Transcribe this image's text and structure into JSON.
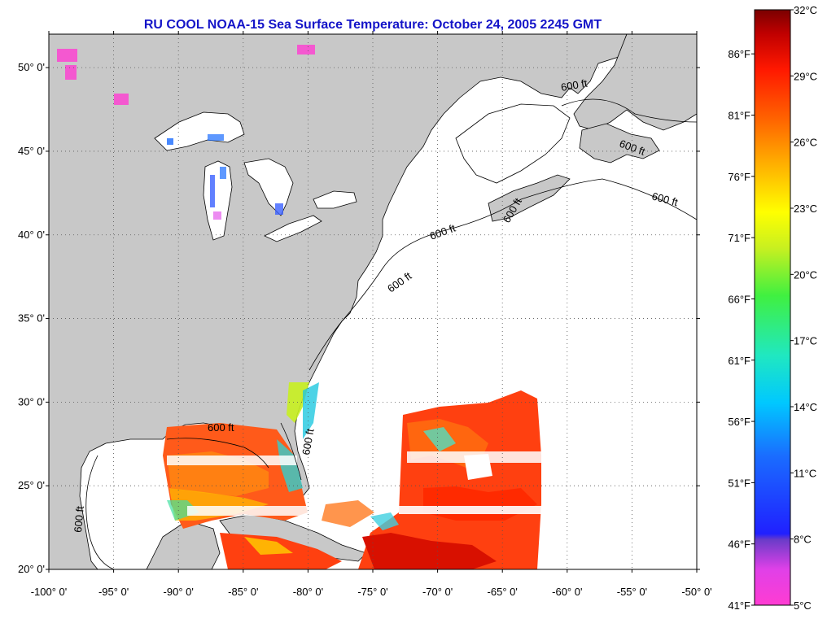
{
  "title": "RU COOL  NOAA-15  Sea Surface Temperature:  October 24, 2005 2245 GMT",
  "map": {
    "lon_range": [
      -100,
      -50
    ],
    "lat_range": [
      20,
      52
    ],
    "lat_labels": [
      "20° 0'",
      "25° 0'",
      "30° 0'",
      "35° 0'",
      "40° 0'",
      "45° 0'",
      "50° 0'"
    ],
    "lat_values": [
      20,
      25,
      30,
      35,
      40,
      45,
      50
    ],
    "lon_labels": [
      "-100° 0'",
      "-95° 0'",
      "-90° 0'",
      "-85° 0'",
      "-80° 0'",
      "-75° 0'",
      "-70° 0'",
      "-65° 0'",
      "-60° 0'",
      "-55° 0'",
      "-50° 0'"
    ],
    "lon_values": [
      -100,
      -95,
      -90,
      -85,
      -80,
      -75,
      -70,
      -65,
      -60,
      -55,
      -50
    ],
    "contour_label": "600 ft",
    "colors": {
      "land": "#c8c8c8",
      "ocean": "#ffffff",
      "grid": "#555555"
    }
  },
  "colorbar": {
    "celsius_labels": [
      "32°C",
      "29°C",
      "26°C",
      "23°C",
      "20°C",
      "17°C",
      "14°C",
      "11°C",
      "8°C",
      "5°C"
    ],
    "celsius_values": [
      32,
      29,
      26,
      23,
      20,
      17,
      14,
      11,
      8,
      5
    ],
    "fahrenheit_labels": [
      "86°F",
      "81°F",
      "76°F",
      "71°F",
      "66°F",
      "61°F",
      "56°F",
      "51°F",
      "46°F",
      "41°F"
    ],
    "fahrenheit_values": [
      86,
      81,
      76,
      71,
      66,
      61,
      56,
      51,
      46,
      41
    ],
    "range_c": [
      5,
      32
    ]
  }
}
